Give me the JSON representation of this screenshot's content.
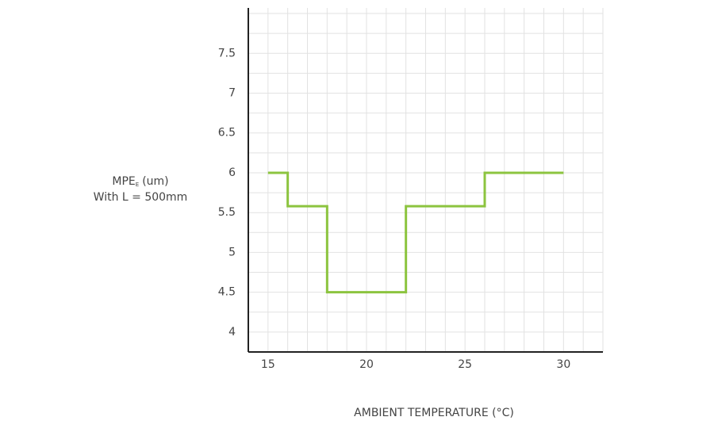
{
  "chart_data": {
    "type": "line",
    "y_label": {
      "text": "MPE",
      "subscript": "E",
      "suffix": "(um)",
      "line2": "With L = 500mm"
    },
    "x_label": "AMBIENT TEMPERATURE (°C)",
    "x": [
      15,
      16,
      16,
      18,
      18,
      22,
      22,
      26,
      26,
      30
    ],
    "series": [
      {
        "color": "#8cc43f",
        "values": [
          6,
          6,
          5.58,
          5.58,
          4.5,
          4.5,
          5.58,
          5.58,
          6,
          6
        ]
      }
    ],
    "xlim": [
      14,
      32
    ],
    "ylim": [
      3.75,
      8.07
    ],
    "xticks": [
      15,
      20,
      25,
      30
    ],
    "yticks": [
      4,
      4.5,
      5,
      5.5,
      6,
      6.5,
      7,
      7.5
    ],
    "grid": true,
    "grid_step_x": 1,
    "grid_step_y": 0.25
  }
}
